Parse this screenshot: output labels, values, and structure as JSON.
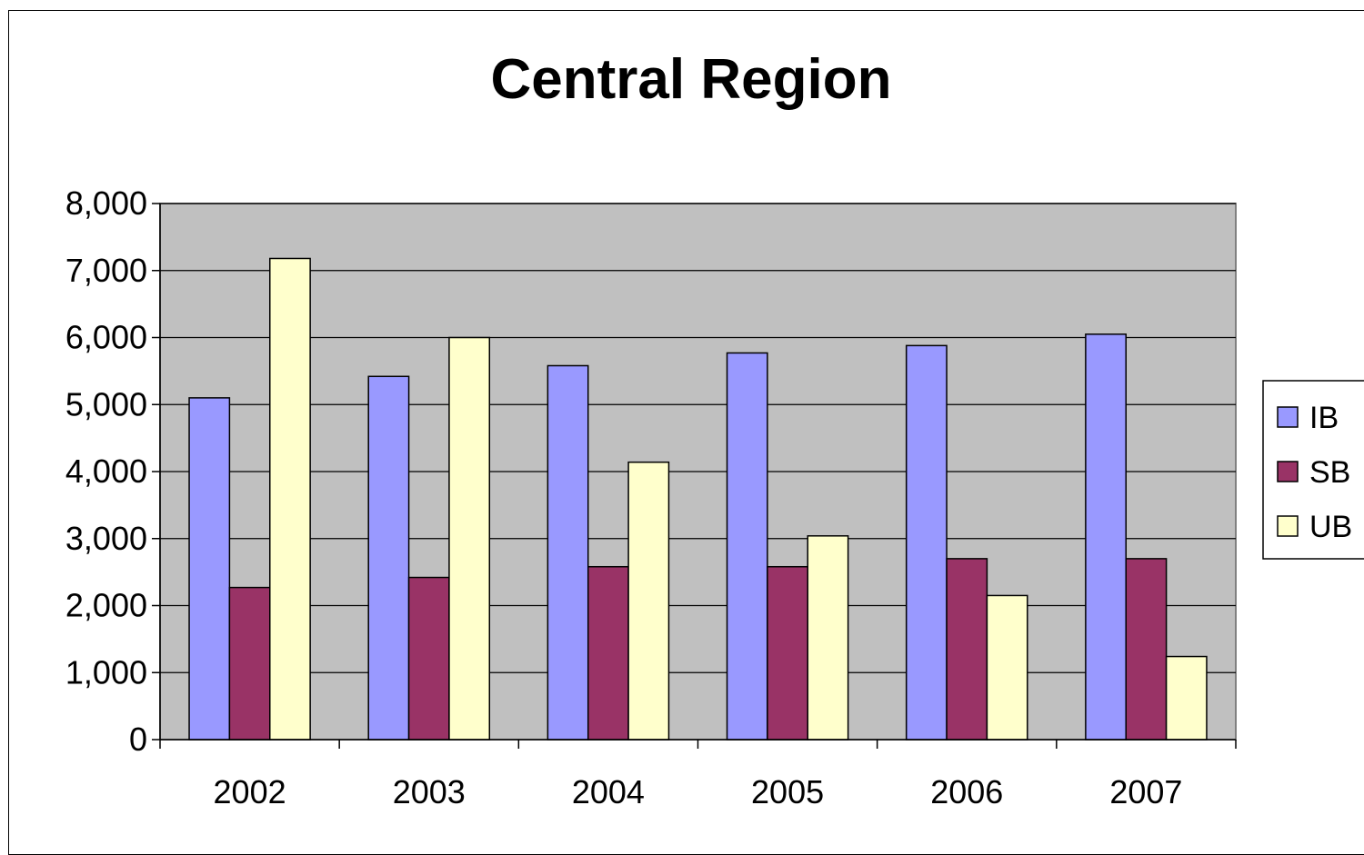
{
  "chart_data": {
    "type": "bar",
    "title": "Central Region",
    "xlabel": "",
    "ylabel": "",
    "categories": [
      "2002",
      "2003",
      "2004",
      "2005",
      "2006",
      "2007"
    ],
    "series": [
      {
        "name": "IB",
        "color": "#9999ff",
        "values": [
          5100,
          5420,
          5580,
          5770,
          5880,
          6050
        ]
      },
      {
        "name": "SB",
        "color": "#993366",
        "values": [
          2270,
          2420,
          2580,
          2580,
          2700,
          2700
        ]
      },
      {
        "name": "UB",
        "color": "#ffffcc",
        "values": [
          7180,
          6000,
          4140,
          3040,
          2150,
          1240
        ]
      }
    ],
    "ylim": [
      0,
      8000
    ],
    "yticks": [
      0,
      1000,
      2000,
      3000,
      4000,
      5000,
      6000,
      7000,
      8000
    ],
    "ytick_labels": [
      "0",
      "1,000",
      "2,000",
      "3,000",
      "4,000",
      "5,000",
      "6,000",
      "7,000",
      "8,000"
    ],
    "grid": true,
    "plot_background": "#c0c0c0",
    "legend_position": "right"
  }
}
